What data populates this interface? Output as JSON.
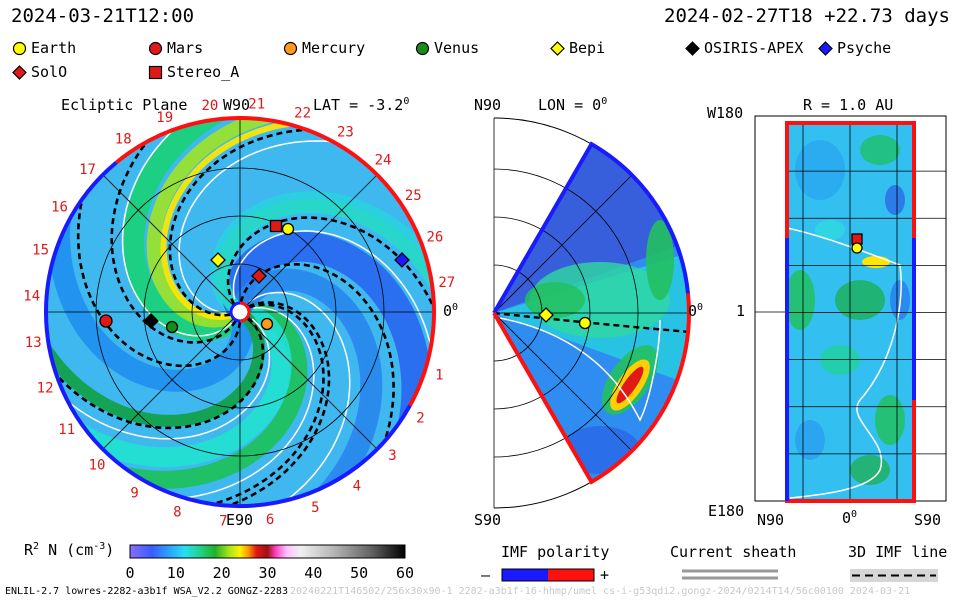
{
  "header": {
    "left_datetime": "2024-03-21T12:00",
    "right_datetime": "2024-02-27T18 +22.73 days"
  },
  "legend": {
    "items": [
      {
        "name": "Earth",
        "marker": "circle",
        "color": "#ffff00"
      },
      {
        "name": "Mars",
        "marker": "circle",
        "color": "#e01818"
      },
      {
        "name": "Mercury",
        "marker": "circle",
        "color": "#ff9a1a"
      },
      {
        "name": "Venus",
        "marker": "circle",
        "color": "#1a8a1a"
      },
      {
        "name": "Bepi",
        "marker": "diamond",
        "color": "#ffff00"
      },
      {
        "name": "OSIRIS-APEX",
        "marker": "diamond",
        "color": "#000000"
      },
      {
        "name": "Psyche",
        "marker": "diamond",
        "color": "#1a1aff"
      },
      {
        "name": "SolO",
        "marker": "diamond",
        "color": "#e01818"
      },
      {
        "name": "Stereo_A",
        "marker": "square",
        "color": "#e01818"
      }
    ]
  },
  "panels": {
    "ecliptic": {
      "title": "Ecliptic Plane",
      "top_label": "W90",
      "lat_label": "LAT = -3.2",
      "lat_sup": "0",
      "zero_label": "0",
      "zero_sup": "0",
      "bottom_label": "E90",
      "rotation_numbers": [
        "1",
        "2",
        "3",
        "4",
        "5",
        "6",
        "7",
        "8",
        "9",
        "10",
        "11",
        "12",
        "13",
        "14",
        "15",
        "16",
        "17",
        "18",
        "19",
        "20",
        "21",
        "22",
        "23",
        "24",
        "25",
        "26",
        "27"
      ]
    },
    "meridional": {
      "top_label": "N90",
      "lon_label": "LON = 0",
      "lon_sup": "0",
      "zero_label": "0",
      "zero_sup": "0",
      "bottom_label": "S90"
    },
    "radial": {
      "title": "R = 1.0 AU",
      "top_label": "W180",
      "mid_label": "1",
      "bottom_label": "E180",
      "x_left": "N90",
      "x_mid": "0",
      "x_mid_sup": "0",
      "x_right": "S90"
    }
  },
  "colorbar": {
    "label": "R",
    "label_sup": "2",
    "label_tail": " N (cm",
    "label_tail_sup": "-3",
    "label_close": ")",
    "ticks": [
      "0",
      "10",
      "20",
      "30",
      "40",
      "50",
      "60"
    ],
    "range": [
      0,
      60
    ]
  },
  "imf_polarity": {
    "title": "IMF polarity",
    "minus": "–",
    "plus": "+",
    "neg_color": "#1a1aff",
    "pos_color": "#ff1010"
  },
  "current_sheath": {
    "title": "Current sheath"
  },
  "imf_line": {
    "title": "3D IMF line"
  },
  "footer": {
    "left": "ENLIL-2.7 lowres-2282-a3b1f WSA_V2.2 GONGZ-2283",
    "right_faint": "20240221T146502/256x30x90-1 2282-a3b1f-16-hhmp/umel cs-i-g53qdi2.gongz-2024/0214T14/56c00100 2024-03-21"
  },
  "chart_data": {
    "type": "heatmap",
    "quantity": "R2 N (cm-3)",
    "color_range": [
      0,
      60
    ],
    "bodies": [
      {
        "name": "Earth",
        "lon_deg": 0,
        "lat_deg": -3.2
      },
      {
        "name": "Stereo_A",
        "lon_deg": 0
      },
      {
        "name": "Bepi",
        "lon_deg": 0
      },
      {
        "name": "SolO",
        "lon_deg": 0
      }
    ]
  }
}
